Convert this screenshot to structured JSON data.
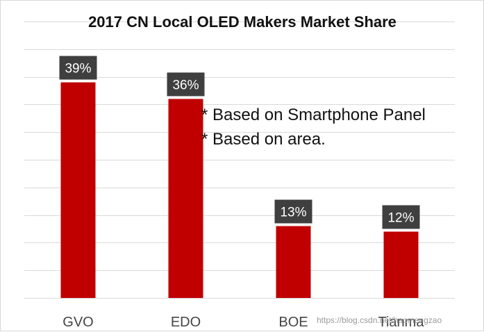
{
  "chart_data": {
    "type": "bar",
    "title": "2017 CN Local OLED Makers Market Share",
    "categories": [
      "GVO",
      "EDO",
      "BOE",
      "Tianma"
    ],
    "values": [
      39,
      36,
      13,
      12
    ],
    "data_labels": [
      "39%",
      "36%",
      "13%",
      "12%"
    ],
    "ylim": [
      0,
      50
    ],
    "grid": true,
    "annotations": [
      "* Based on Smartphone Panel",
      "* Based on area."
    ],
    "colors": {
      "bar": "#c00000",
      "label_bg": "#3f3f3f",
      "grid": "#d9d9d9"
    }
  },
  "watermark": "https://blog.csdn.net/haomengzao"
}
